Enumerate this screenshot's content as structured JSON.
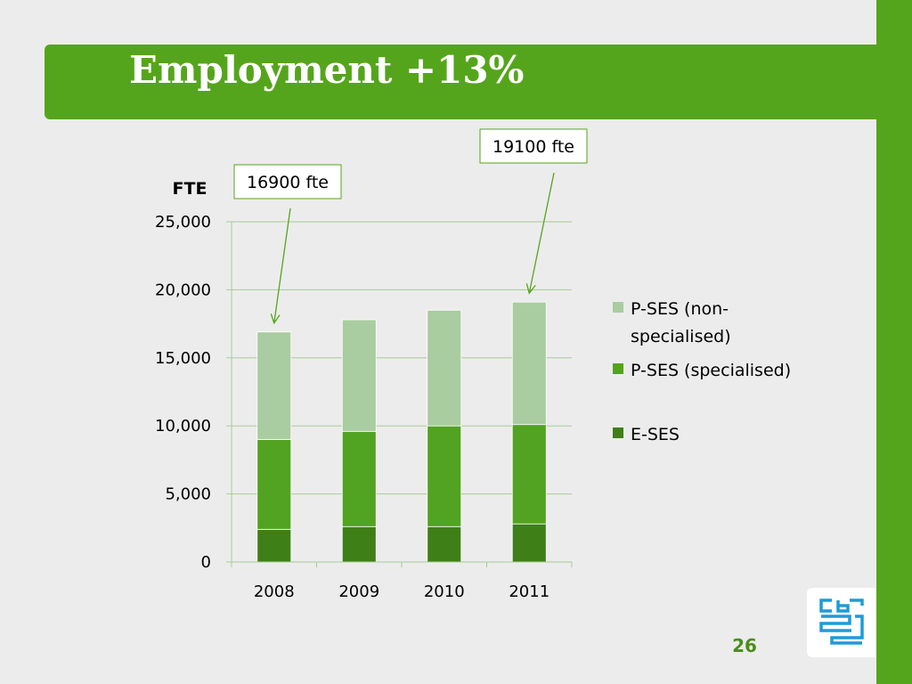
{
  "slide": {
    "title": "Employment +13%",
    "page_number": "26"
  },
  "colors": {
    "brand_green": "#55a51c",
    "e_ses": "#3f7f17",
    "p_ses_specialised": "#52a321",
    "p_ses_non_specialised": "#a9cca0",
    "gridline": "#a8cc96"
  },
  "logo": {
    "icon": "cbs-logo-icon"
  },
  "chart_data": {
    "type": "bar",
    "stacked": true,
    "ylabel": "FTE",
    "ylim": [
      0,
      25000
    ],
    "yticks": [
      0,
      5000,
      10000,
      15000,
      20000,
      25000
    ],
    "ytick_labels": [
      "0",
      "5,000",
      "10,000",
      "15,000",
      "20,000",
      "25,000"
    ],
    "grid": true,
    "categories": [
      "2008",
      "2009",
      "2010",
      "2011"
    ],
    "series": [
      {
        "name": "E-SES",
        "values": [
          2400,
          2600,
          2600,
          2800
        ],
        "color": "#3f7f17"
      },
      {
        "name": "P-SES (specialised)",
        "values": [
          6600,
          7000,
          7400,
          7300
        ],
        "color": "#52a321"
      },
      {
        "name": "P-SES (non-specialised)",
        "name_lines": [
          "P-SES (non-",
          "specialised)"
        ],
        "values": [
          7900,
          8200,
          8500,
          9000
        ],
        "color": "#a9cca0"
      }
    ],
    "legend_position": "right",
    "annotations": [
      {
        "text": "16900 fte",
        "category": "2008",
        "value": 16900
      },
      {
        "text": "19100 fte",
        "category": "2011",
        "value": 19100
      }
    ]
  }
}
